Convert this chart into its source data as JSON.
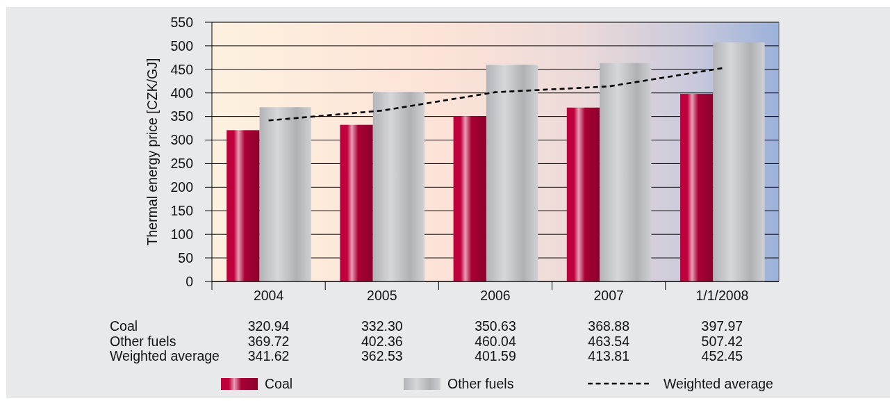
{
  "chart_data": {
    "type": "bar",
    "categories": [
      "2004",
      "2005",
      "2006",
      "2007",
      "1/1/2008"
    ],
    "ylabel": "Thermal energy price [CZK/GJ]",
    "ylim": [
      0,
      550
    ],
    "yticks": [
      0,
      50,
      100,
      150,
      200,
      250,
      300,
      350,
      400,
      450,
      500,
      550
    ],
    "grid": "y",
    "legend": "bottom",
    "series": [
      {
        "name": "Coal",
        "color": "#c0003c",
        "values": [
          320.94,
          332.3,
          350.63,
          368.88,
          397.97
        ],
        "value_labels": [
          "320.94",
          "332.30",
          "350.63",
          "368.88",
          "397.97"
        ]
      },
      {
        "name": "Other fuels",
        "color": "#c4c5c8",
        "values": [
          369.72,
          402.36,
          460.04,
          463.54,
          507.42
        ],
        "value_labels": [
          "369.72",
          "402.36",
          "460.04",
          "463.54",
          "507.42"
        ]
      },
      {
        "name": "Weighted average",
        "type": "line",
        "color": "#000000",
        "line_style": "dashed",
        "values": [
          341.62,
          362.53,
          401.59,
          413.81,
          452.45
        ],
        "value_labels": [
          "341.62",
          "362.53",
          "401.59",
          "413.81",
          "452.45"
        ]
      }
    ]
  }
}
